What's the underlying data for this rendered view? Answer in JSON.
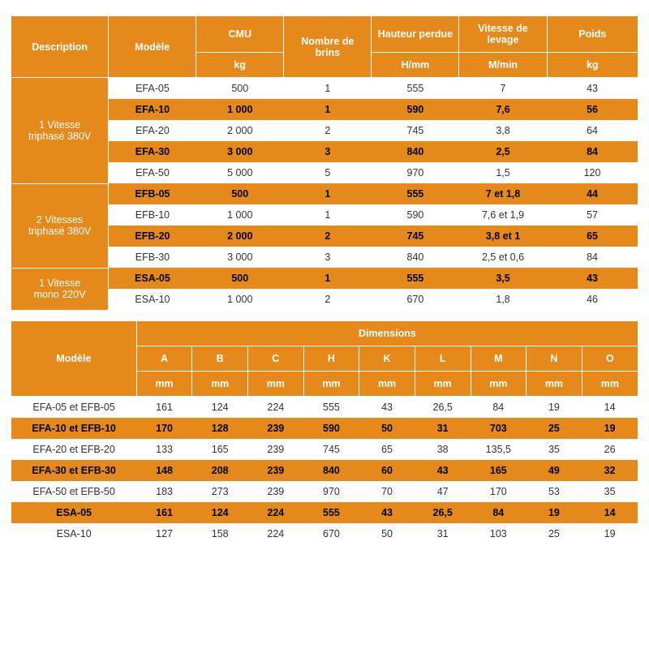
{
  "colors": {
    "header_bg": "#e58a1a",
    "header_fg": "#ffffff",
    "row_white_bg": "#ffffff",
    "row_white_fg": "#333333",
    "row_amber_bg": "#e58a1a",
    "row_amber_fg": "#000000",
    "border": "#ffffff"
  },
  "table1": {
    "headers": {
      "description": "Description",
      "model": "Modèle",
      "cmu": "CMU",
      "cmu_unit": "kg",
      "brins": "Nombre de brins",
      "hauteur": "Hauteur perdue",
      "hauteur_unit": "H/mm",
      "vitesse": "Vitesse de levage",
      "vitesse_unit": "M/min",
      "poids": "Poids",
      "poids_unit": "kg"
    },
    "col_widths_pct": [
      15.5,
      14,
      14,
      14,
      14,
      14,
      14.5
    ],
    "groups": [
      {
        "label": "1 Vitesse triphasé 380V",
        "rows": [
          {
            "tone": "white",
            "cells": [
              "EFA-05",
              "500",
              "1",
              "555",
              "7",
              "43"
            ]
          },
          {
            "tone": "amber",
            "cells": [
              "EFA-10",
              "1 000",
              "1",
              "590",
              "7,6",
              "56"
            ]
          },
          {
            "tone": "white",
            "cells": [
              "EFA-20",
              "2 000",
              "2",
              "745",
              "3,8",
              "64"
            ]
          },
          {
            "tone": "amber",
            "cells": [
              "EFA-30",
              "3 000",
              "3",
              "840",
              "2,5",
              "84"
            ]
          },
          {
            "tone": "white",
            "cells": [
              "EFA-50",
              "5 000",
              "5",
              "970",
              "1,5",
              "120"
            ]
          }
        ]
      },
      {
        "label": "2 Vitesses triphasé 380V",
        "rows": [
          {
            "tone": "amber",
            "cells": [
              "EFB-05",
              "500",
              "1",
              "555",
              "7 et 1,8",
              "44"
            ]
          },
          {
            "tone": "white",
            "cells": [
              "EFB-10",
              "1 000",
              "1",
              "590",
              "7,6 et 1,9",
              "57"
            ]
          },
          {
            "tone": "amber",
            "cells": [
              "EFB-20",
              "2 000",
              "2",
              "745",
              "3,8 et 1",
              "65"
            ]
          },
          {
            "tone": "white",
            "cells": [
              "EFB-30",
              "3 000",
              "3",
              "840",
              "2,5 et 0,6",
              "84"
            ]
          }
        ]
      },
      {
        "label": "1 Vitesse mono 220V",
        "rows": [
          {
            "tone": "amber",
            "cells": [
              "ESA-05",
              "500",
              "1",
              "555",
              "3,5",
              "43"
            ]
          },
          {
            "tone": "white",
            "cells": [
              "ESA-10",
              "1 000",
              "2",
              "670",
              "1,8",
              "46"
            ]
          }
        ]
      }
    ]
  },
  "table2": {
    "headers": {
      "model": "Modèle",
      "dimensions": "Dimensions",
      "cols": [
        "A",
        "B",
        "C",
        "H",
        "K",
        "L",
        "M",
        "N",
        "O"
      ],
      "unit": "mm"
    },
    "col_widths_pct": [
      20,
      8.9,
      8.9,
      8.9,
      8.9,
      8.9,
      8.9,
      8.9,
      8.9,
      8.9
    ],
    "rows": [
      {
        "tone": "white",
        "model": "EFA-05 et EFB-05",
        "cells": [
          "161",
          "124",
          "224",
          "555",
          "43",
          "26,5",
          "84",
          "19",
          "14"
        ]
      },
      {
        "tone": "amber",
        "model": "EFA-10 et EFB-10",
        "cells": [
          "170",
          "128",
          "239",
          "590",
          "50",
          "31",
          "703",
          "25",
          "19"
        ]
      },
      {
        "tone": "white",
        "model": "EFA-20 et EFB-20",
        "cells": [
          "133",
          "165",
          "239",
          "745",
          "65",
          "38",
          "135,5",
          "35",
          "26"
        ]
      },
      {
        "tone": "amber",
        "model": "EFA-30 et EFB-30",
        "cells": [
          "148",
          "208",
          "239",
          "840",
          "60",
          "43",
          "165",
          "49",
          "32"
        ]
      },
      {
        "tone": "white",
        "model": "EFA-50 et EFB-50",
        "cells": [
          "183",
          "273",
          "239",
          "970",
          "70",
          "47",
          "170",
          "53",
          "35"
        ]
      },
      {
        "tone": "amber",
        "model": "ESA-05",
        "cells": [
          "161",
          "124",
          "224",
          "555",
          "43",
          "26,5",
          "84",
          "19",
          "14"
        ]
      },
      {
        "tone": "white",
        "model": "ESA-10",
        "cells": [
          "127",
          "158",
          "224",
          "670",
          "50",
          "31",
          "103",
          "25",
          "19"
        ]
      }
    ]
  }
}
